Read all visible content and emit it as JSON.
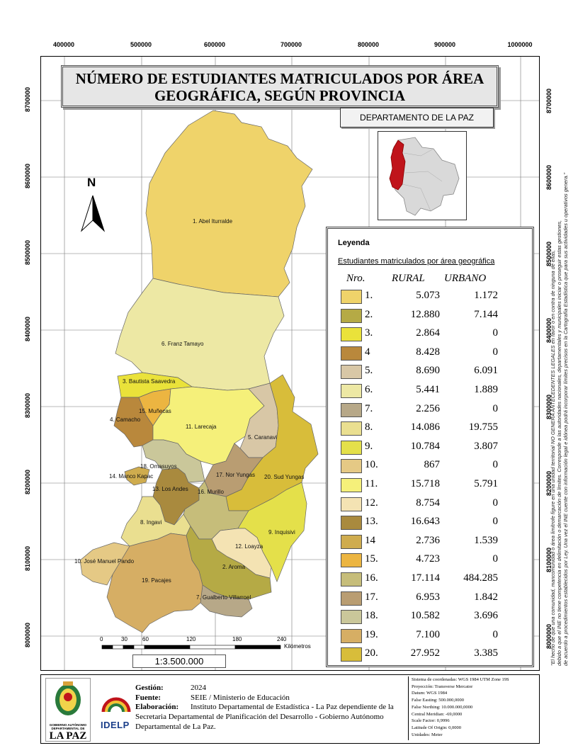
{
  "title": {
    "line1": "NÚMERO DE ESTUDIANTES MATRICULADOS POR ÁREA",
    "line2": "GEOGRÁFICA,  SEGÚN PROVINCIA"
  },
  "department_label": "DEPARTAMENTO DE LA PAZ",
  "x_ticks": [
    "400000",
    "500000",
    "600000",
    "700000",
    "800000",
    "900000",
    "1000000"
  ],
  "y_ticks": [
    "8700000",
    "8600000",
    "8500000",
    "8400000",
    "8300000",
    "8200000",
    "8100000",
    "8000000"
  ],
  "north_label": "N",
  "legend": {
    "heading": "Leyenda",
    "subtitle": "Estudiantes matriculados por área geográfica",
    "col_num": "Nro.",
    "col_rural": "RURAL",
    "col_urban": "URBANO",
    "rows": [
      {
        "n": "1.",
        "rural": "5.073",
        "urbano": "1.172",
        "color": "#efd36a"
      },
      {
        "n": "2.",
        "rural": "12.880",
        "urbano": "7.144",
        "color": "#b5aa45"
      },
      {
        "n": "3.",
        "rural": "2.864",
        "urbano": "0",
        "color": "#eae23a"
      },
      {
        "n": "4",
        "rural": "8.428",
        "urbano": "0",
        "color": "#b9883c"
      },
      {
        "n": "5.",
        "rural": "8.690",
        "urbano": "6.091",
        "color": "#d8c7a6"
      },
      {
        "n": "6.",
        "rural": "5.441",
        "urbano": "1.889",
        "color": "#ede8a4"
      },
      {
        "n": "7.",
        "rural": "2.256",
        "urbano": "0",
        "color": "#b7a888"
      },
      {
        "n": "8.",
        "rural": "14.086",
        "urbano": "19.755",
        "color": "#eadf90"
      },
      {
        "n": "9.",
        "rural": "10.784",
        "urbano": "3.807",
        "color": "#e4e04a"
      },
      {
        "n": "10.",
        "rural": "867",
        "urbano": "0",
        "color": "#e5c985"
      },
      {
        "n": "11.",
        "rural": "15.718",
        "urbano": "5.791",
        "color": "#f5f07a"
      },
      {
        "n": "12.",
        "rural": "8.754",
        "urbano": "0",
        "color": "#f4e3b3"
      },
      {
        "n": "13.",
        "rural": "16.643",
        "urbano": "0",
        "color": "#a98a3e"
      },
      {
        "n": "14",
        "rural": "2.736",
        "urbano": "1.539",
        "color": "#cfac4e"
      },
      {
        "n": "15.",
        "rural": "4.723",
        "urbano": "0",
        "color": "#ecb541"
      },
      {
        "n": "16.",
        "rural": "17.114",
        "urbano": "484.285",
        "color": "#c6bd7a"
      },
      {
        "n": "17.",
        "rural": "6.953",
        "urbano": "1.842",
        "color": "#b99d72"
      },
      {
        "n": "18.",
        "rural": "10.582",
        "urbano": "3.696",
        "color": "#cac79a"
      },
      {
        "n": "19.",
        "rural": "7.100",
        "urbano": "0",
        "color": "#d6ae64"
      },
      {
        "n": "20.",
        "rural": "27.952",
        "urbano": "3.385",
        "color": "#d8bd3a"
      }
    ]
  },
  "provinces": [
    {
      "label": "1. Abel Iturralde",
      "color": "#efd36a"
    },
    {
      "label": "2. Aroma",
      "color": "#b5aa45"
    },
    {
      "label": "3. Bautista Saavedra",
      "color": "#eae23a"
    },
    {
      "label": "4. Camacho",
      "color": "#b9883c"
    },
    {
      "label": "5. Caranavi",
      "color": "#d8c7a6"
    },
    {
      "label": "6. Franz Tamayo",
      "color": "#ede8a4"
    },
    {
      "label": "7. Gualberto Villarroel",
      "color": "#b7a888"
    },
    {
      "label": "8. Ingavi",
      "color": "#eadf90"
    },
    {
      "label": "9. Inquisivi",
      "color": "#e4e04a"
    },
    {
      "label": "10. José Manuel Pando",
      "color": "#e5c985"
    },
    {
      "label": "11. Larecaja",
      "color": "#f5f07a"
    },
    {
      "label": "12. Loayza",
      "color": "#f4e3b3"
    },
    {
      "label": "13. Los Andes",
      "color": "#a98a3e"
    },
    {
      "label": "14. Manco Kapac",
      "color": "#cfac4e"
    },
    {
      "label": "15. Muñecas",
      "color": "#ecb541"
    },
    {
      "label": "16. Murillo",
      "color": "#c6bd7a"
    },
    {
      "label": "17. Nor Yungas",
      "color": "#b99d72"
    },
    {
      "label": "18. Omasuyos",
      "color": "#cac79a"
    },
    {
      "label": "19. Pacajes",
      "color": "#d6ae64"
    },
    {
      "label": "20. Sud Yungas",
      "color": "#d8bd3a"
    }
  ],
  "scale_bar": {
    "ticks": [
      "0",
      "30",
      "60",
      "120",
      "180",
      "240"
    ],
    "unit": "Kilómetros",
    "ratio": "1:3.500.000"
  },
  "footer": {
    "gestion_key": "Gestión:",
    "gestion_val": "2024",
    "fuente_key": "Fuente:",
    "fuente_val": "SEIE / Ministerio de Educación",
    "elab_key": "Elaboración:",
    "elab_line1": "Instituto Departamental de Estadística - La Paz dependiente de la",
    "elab_line2": "Secretaria Departamental de Planificación  del Desarrollo  -  Gobierno Autónomo",
    "elab_line3": "Departamental de La Paz.",
    "logo_text": "GOBIERNO AUTÓNOMO DEPARTAMENTAL DE",
    "logo_big": "LA PAZ",
    "idelp": "IDELP"
  },
  "coords": [
    "Sistema de coordenadas: WGS 1984 UTM Zone 19S",
    "Proyección: Transverse Mercator",
    "Datum: WGS 1984",
    "False Easting: 500.000,0000",
    "False Northing: 10.000.000,0000",
    "Central Meridian: -69,0000",
    "Scale Factor: 0,9996",
    "Latitude Of Origin: 0,0000",
    "Unidades: Meter"
  ],
  "disclaimer": {
    "line1": "\"El hecho de que una comunidad, mancomunidad o área limítrofe figure en una unidad territorial NO GENERA ANTECEDENTES LEGALES en favor o en contra de ninguna de ellas,",
    "line2": "debido a que el INE no tiene competencia en delimitación o demarcación de límites. Corresponde a las autoridades nacionales, departamentales y municipales iniciar o proseguir estas gestiones,",
    "line3": "de acuerdo a procedimientos establecidos por Ley. Una vez el INE cuente con información legal e idónea podrá incorporar límites precisos en la Cartografía Estadística que para sus actividades u operativos genera.\""
  }
}
